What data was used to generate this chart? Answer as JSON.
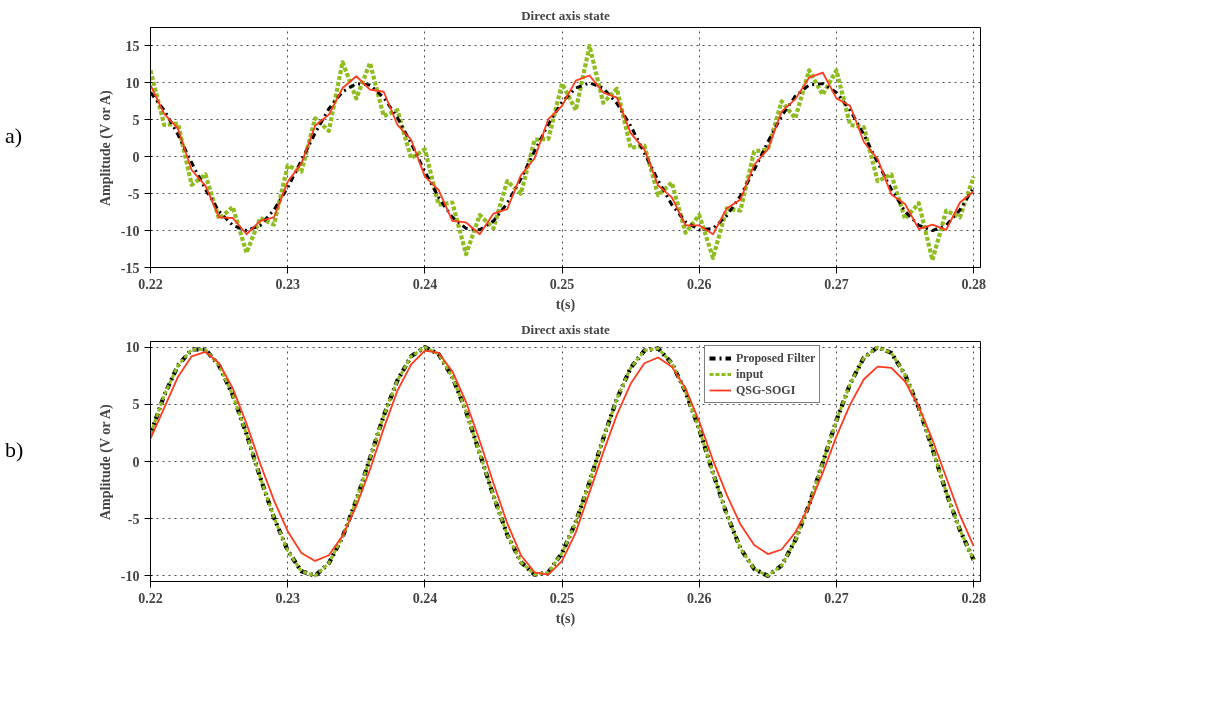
{
  "chart_data": [
    {
      "type": "line",
      "title": "Direct axis state",
      "xlabel": "t(s)",
      "ylabel": "Amplitude (V or A)",
      "annotations": [
        "a)"
      ],
      "x": [
        0.22,
        0.221,
        0.222,
        0.223,
        0.224,
        0.225,
        0.226,
        0.227,
        0.228,
        0.229,
        0.23,
        0.231,
        0.232,
        0.233,
        0.234,
        0.235,
        0.236,
        0.237,
        0.238,
        0.239,
        0.24,
        0.241,
        0.242,
        0.243,
        0.244,
        0.245,
        0.246,
        0.247,
        0.248,
        0.249,
        0.25,
        0.251,
        0.252,
        0.253,
        0.254,
        0.255,
        0.256,
        0.257,
        0.258,
        0.259,
        0.26,
        0.261,
        0.262,
        0.263,
        0.264,
        0.265,
        0.266,
        0.267,
        0.268,
        0.269,
        0.27,
        0.271,
        0.272,
        0.273,
        0.274,
        0.275,
        0.276,
        0.277,
        0.278,
        0.279,
        0.28
      ],
      "series": [
        {
          "color": "#8fbc1f",
          "line_style": "dashed",
          "values": [
            11.7,
            4.3,
            4.5,
            -3.8,
            -2.4,
            -8.4,
            -6.8,
            -13,
            -8.3,
            -9.2,
            -1.2,
            -2.0,
            5.2,
            3.5,
            12.8,
            7.9,
            12.7,
            5.5,
            6.3,
            -0.2,
            1.0,
            -6.5,
            -6.2,
            -13.2,
            -7.9,
            -9.7,
            -3.3,
            -5.0,
            2.3,
            2.4,
            9.9,
            6.3,
            15,
            7.3,
            9.2,
            1.2,
            1.5,
            -5.2,
            -3.5,
            -10.3,
            -7.9,
            -13.7,
            -7.0,
            -7.3,
            0.7,
            1.0,
            7.5,
            5.2,
            11.7,
            8.4,
            11.7,
            4.3,
            4.0,
            -3.3,
            -2.4,
            -8.4,
            -6.3,
            -14,
            -7.3,
            -8.2,
            -2.7
          ]
        },
        {
          "color": "#000000",
          "line_style": "dashdot",
          "values": [
            8.7,
            6.3,
            3.0,
            -0.8,
            -4.4,
            -7.4,
            -9.3,
            -10,
            -9.3,
            -7.2,
            -4.2,
            -0.5,
            3.2,
            6.5,
            8.8,
            9.9,
            9.7,
            8.0,
            5.3,
            1.8,
            -2.0,
            -5.5,
            -8.2,
            -9.7,
            -9.9,
            -8.7,
            -6.3,
            -3.0,
            0.8,
            4.4,
            7.4,
            9.3,
            10,
            9.3,
            7.2,
            4.2,
            0.5,
            -3.2,
            -6.5,
            -8.8,
            -9.9,
            -9.7,
            -8.0,
            -5.3,
            -1.8,
            2.0,
            5.5,
            8.2,
            9.7,
            9.9,
            8.7,
            6.3,
            3.0,
            -0.8,
            -4.4,
            -7.4,
            -9.3,
            -10,
            -9.3,
            -7.2,
            -4.2
          ]
        },
        {
          "color": "#ff3b1f",
          "line_style": "solid",
          "values": [
            9.7,
            5.8,
            3.8,
            -1.8,
            -3.9,
            -8.2,
            -8.3,
            -10.5,
            -8.7,
            -8.2,
            -3.4,
            -0.9,
            4.2,
            5.7,
            9.3,
            10.9,
            9.1,
            8.8,
            4.3,
            2.3,
            -2.7,
            -4.5,
            -8.7,
            -8.9,
            -10.5,
            -7.7,
            -7.1,
            -2.5,
            -0.2,
            5.1,
            6.9,
            10.3,
            11,
            8.7,
            8.0,
            3.2,
            1.0,
            -3.9,
            -5.5,
            -9.3,
            -9.3,
            -10.5,
            -7.0,
            -5.8,
            -1.1,
            1.0,
            6.1,
            7.8,
            10.7,
            11.4,
            7.9,
            6.9,
            2.0,
            -0.3,
            -5.1,
            -6.4,
            -9.8,
            -9.2,
            -9.9,
            -6.2,
            -4.7
          ]
        }
      ],
      "xlim": [
        0.22,
        0.2805
      ],
      "xticks": [
        0.22,
        0.23,
        0.24,
        0.25,
        0.26,
        0.27,
        0.28
      ],
      "ylim": [
        -15,
        17.5
      ],
      "yticks": [
        -15,
        -10,
        -5,
        0,
        5,
        10,
        15
      ],
      "grid": true
    },
    {
      "type": "line",
      "title": "Direct axis state",
      "xlabel": "t(s)",
      "ylabel": "Amplitude (V or A)",
      "annotations": [
        "b)"
      ],
      "x": [
        0.22,
        0.221,
        0.222,
        0.223,
        0.224,
        0.225,
        0.226,
        0.227,
        0.228,
        0.229,
        0.23,
        0.231,
        0.232,
        0.233,
        0.234,
        0.235,
        0.236,
        0.237,
        0.238,
        0.239,
        0.24,
        0.241,
        0.242,
        0.243,
        0.244,
        0.245,
        0.246,
        0.247,
        0.248,
        0.249,
        0.25,
        0.251,
        0.252,
        0.253,
        0.254,
        0.255,
        0.256,
        0.257,
        0.258,
        0.259,
        0.26,
        0.261,
        0.262,
        0.263,
        0.264,
        0.265,
        0.266,
        0.267,
        0.268,
        0.269,
        0.27,
        0.271,
        0.272,
        0.273,
        0.274,
        0.275,
        0.276,
        0.277,
        0.278,
        0.279,
        0.28
      ],
      "series": [
        {
          "name": "Proposed Filter",
          "color": "#000000",
          "line_style": "dashdot",
          "values": [
            2.4,
            5.8,
            8.4,
            9.8,
            9.8,
            8.4,
            5.8,
            2.4,
            -1.4,
            -4.9,
            -7.8,
            -9.6,
            -10.0,
            -8.9,
            -6.6,
            -3.4,
            0.3,
            4.0,
            7.1,
            9.2,
            10.0,
            9.4,
            7.4,
            4.4,
            0.7,
            -3.0,
            -6.4,
            -8.8,
            -9.9,
            -9.7,
            -8.0,
            -5.3,
            -1.8,
            2.0,
            5.5,
            8.2,
            9.7,
            9.9,
            8.6,
            6.1,
            2.8,
            -1.0,
            -4.6,
            -7.6,
            -9.4,
            -10.0,
            -9.1,
            -6.9,
            -3.8,
            -0.1,
            3.6,
            6.8,
            9.1,
            10.0,
            9.5,
            7.6,
            4.7,
            1.1,
            -2.7,
            -6.0,
            -8.6
          ]
        },
        {
          "name": "input",
          "color": "#8fbc1f",
          "line_style": "dashed",
          "values": [
            2.4,
            5.8,
            8.4,
            9.8,
            9.8,
            8.4,
            5.8,
            2.4,
            -1.4,
            -4.9,
            -7.8,
            -9.6,
            -10.0,
            -8.9,
            -6.6,
            -3.4,
            0.3,
            4.0,
            7.1,
            9.2,
            10.0,
            9.4,
            7.4,
            4.4,
            0.7,
            -3.0,
            -6.4,
            -8.8,
            -9.9,
            -9.7,
            -8.0,
            -5.3,
            -1.8,
            2.0,
            5.5,
            8.2,
            9.7,
            9.9,
            8.6,
            6.1,
            2.8,
            -1.0,
            -4.6,
            -7.6,
            -9.4,
            -10.0,
            -9.1,
            -6.9,
            -3.8,
            -0.1,
            3.6,
            6.8,
            9.1,
            10.0,
            9.5,
            7.6,
            4.7,
            1.1,
            -2.7,
            -6.0,
            -8.6
          ]
        },
        {
          "name": "QSG-SOGI",
          "color": "#ff3b1f",
          "line_style": "solid",
          "values": [
            2.0,
            4.7,
            7.4,
            9.2,
            9.6,
            8.6,
            6.4,
            3.3,
            -0.2,
            -3.4,
            -6.1,
            -8.0,
            -8.7,
            -8.2,
            -6.5,
            -3.9,
            -0.7,
            2.9,
            6.2,
            8.5,
            9.7,
            9.5,
            7.9,
            5.2,
            1.8,
            -1.9,
            -5.4,
            -8.2,
            -9.7,
            -9.9,
            -8.7,
            -6.2,
            -2.7,
            0.8,
            4.1,
            6.8,
            8.6,
            9.1,
            8.3,
            6.4,
            3.5,
            0.1,
            -2.9,
            -5.5,
            -7.3,
            -8.1,
            -7.7,
            -6.2,
            -3.9,
            -1.0,
            2.2,
            5.0,
            7.2,
            8.3,
            8.2,
            7.0,
            4.8,
            1.9,
            -1.4,
            -4.7,
            -7.4
          ]
        }
      ],
      "xlim": [
        0.22,
        0.2805
      ],
      "xticks": [
        0.22,
        0.23,
        0.24,
        0.25,
        0.26,
        0.27,
        0.28
      ],
      "ylim": [
        -10.5,
        10.5
      ],
      "yticks": [
        -10,
        -5,
        0,
        5,
        10
      ],
      "grid": true,
      "legend": "top right"
    }
  ]
}
